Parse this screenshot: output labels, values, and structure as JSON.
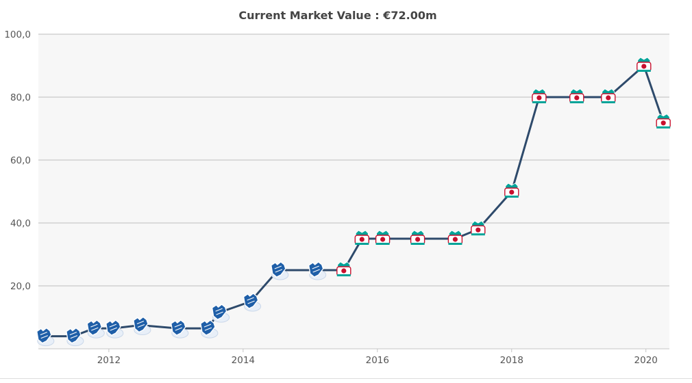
{
  "chart_data": {
    "type": "line",
    "title": "Current Market Value : €72.00m",
    "xlabel": "",
    "ylabel": "",
    "xlim": [
      2010.95,
      2020.35
    ],
    "ylim": [
      0,
      100
    ],
    "grid": true,
    "y_ticks": [
      {
        "value": 20,
        "label": "20,0"
      },
      {
        "value": 40,
        "label": "40,0"
      },
      {
        "value": 60,
        "label": "60,0"
      },
      {
        "value": 80,
        "label": "80,0"
      },
      {
        "value": 100,
        "label": "100,0"
      }
    ],
    "x_ticks": [
      {
        "value": 2012,
        "label": "2012"
      },
      {
        "value": 2014,
        "label": "2014"
      },
      {
        "value": 2016,
        "label": "2016"
      },
      {
        "value": 2018,
        "label": "2018"
      },
      {
        "value": 2020,
        "label": "2020"
      }
    ],
    "series": [
      {
        "name": "Market value",
        "color": "#2e4a6b",
        "points": [
          {
            "x": 2011.03,
            "y": 4,
            "club": "hoffenheim"
          },
          {
            "x": 2011.47,
            "y": 4,
            "club": "hoffenheim"
          },
          {
            "x": 2011.78,
            "y": 6.5,
            "club": "hoffenheim"
          },
          {
            "x": 2012.06,
            "y": 6.5,
            "club": "hoffenheim"
          },
          {
            "x": 2012.47,
            "y": 7.5,
            "club": "hoffenheim"
          },
          {
            "x": 2013.03,
            "y": 6.5,
            "club": "hoffenheim"
          },
          {
            "x": 2013.47,
            "y": 6.5,
            "club": "hoffenheim"
          },
          {
            "x": 2013.64,
            "y": 11.5,
            "club": "hoffenheim"
          },
          {
            "x": 2014.11,
            "y": 15,
            "club": "hoffenheim"
          },
          {
            "x": 2014.52,
            "y": 25,
            "club": "hoffenheim"
          },
          {
            "x": 2015.08,
            "y": 25,
            "club": "hoffenheim"
          },
          {
            "x": 2015.5,
            "y": 25,
            "club": "liverpool"
          },
          {
            "x": 2015.77,
            "y": 35,
            "club": "liverpool"
          },
          {
            "x": 2016.08,
            "y": 35,
            "club": "liverpool"
          },
          {
            "x": 2016.6,
            "y": 35,
            "club": "liverpool"
          },
          {
            "x": 2017.16,
            "y": 35,
            "club": "liverpool"
          },
          {
            "x": 2017.5,
            "y": 38,
            "club": "liverpool"
          },
          {
            "x": 2018.0,
            "y": 50,
            "club": "liverpool"
          },
          {
            "x": 2018.41,
            "y": 80,
            "club": "liverpool"
          },
          {
            "x": 2018.97,
            "y": 80,
            "club": "liverpool"
          },
          {
            "x": 2019.44,
            "y": 80,
            "club": "liverpool"
          },
          {
            "x": 2019.97,
            "y": 90,
            "club": "liverpool"
          },
          {
            "x": 2020.26,
            "y": 72,
            "club": "liverpool"
          }
        ]
      }
    ],
    "marker_colors": {
      "hoffenheim": "#1f5fa8",
      "liverpool": "#c8102e",
      "liverpool_trim": "#00a398"
    },
    "background_color": "#f7f7f7",
    "grid_color": "#bdbdbd"
  }
}
